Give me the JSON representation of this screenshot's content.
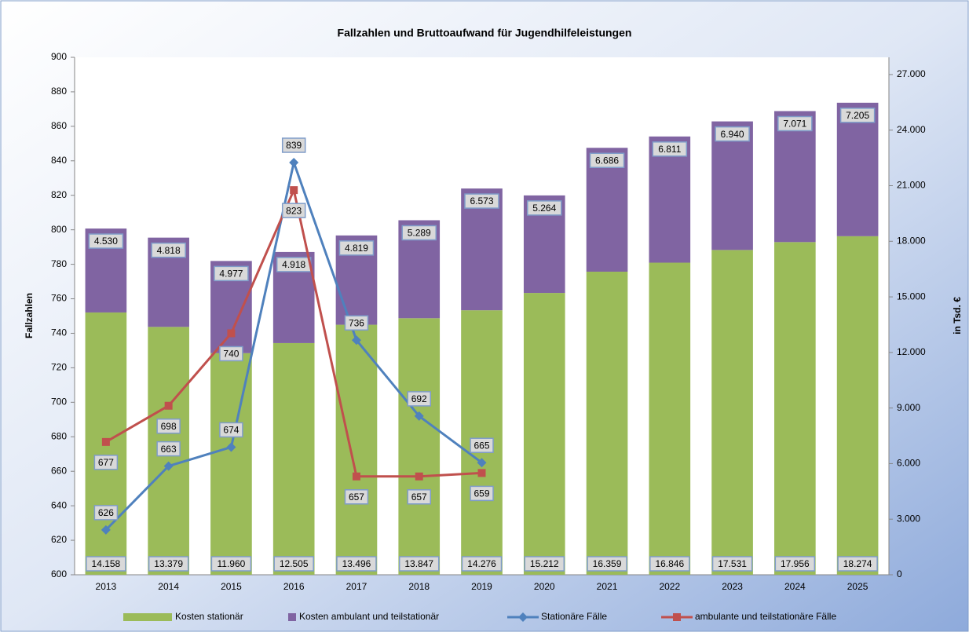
{
  "chart_data": {
    "type": "bar",
    "title": "Fallzahlen und Bruttoaufwand für Jugendhilfeleistungen",
    "y_label": "Fallzahlen",
    "y2_label": "in Tsd. €",
    "categories": [
      "2013",
      "2014",
      "2015",
      "2016",
      "2017",
      "2018",
      "2019",
      "2020",
      "2021",
      "2022",
      "2023",
      "2024",
      "2025"
    ],
    "ylim": [
      600,
      900
    ],
    "yticks": [
      600,
      620,
      640,
      660,
      680,
      700,
      720,
      740,
      760,
      780,
      800,
      820,
      840,
      860,
      880,
      900
    ],
    "y2lim": [
      0,
      27930
    ],
    "y2ticks": [
      0,
      {
        "value": 3000,
        "label": "3.000"
      },
      {
        "value": 6000,
        "label": "6.000"
      },
      {
        "value": 9000,
        "label": "9.000"
      },
      {
        "value": 12000,
        "label": "12.000"
      },
      {
        "value": 15000,
        "label": "15.000"
      },
      {
        "value": 18000,
        "label": "18.000"
      },
      {
        "value": 21000,
        "label": "21.000"
      },
      {
        "value": 24000,
        "label": "24.000"
      },
      {
        "value": 27000,
        "label": "27.000"
      }
    ],
    "grid": false,
    "legend": "bottom",
    "stacked": true,
    "series": [
      {
        "name": "Kosten stationär",
        "type": "bar",
        "axis": "y2",
        "color": "#9bbb59",
        "values": [
          14158,
          13379,
          11960,
          12505,
          13496,
          13847,
          14276,
          15212,
          16359,
          16846,
          17531,
          17956,
          18274
        ],
        "value_labels": [
          "14.158",
          "13.379",
          "11.960",
          "12.505",
          "13.496",
          "13.847",
          "14.276",
          "15.212",
          "16.359",
          "16.846",
          "17.531",
          "17.956",
          "18.274"
        ]
      },
      {
        "name": "Kosten ambulant und teilstationär",
        "type": "bar",
        "axis": "y2",
        "color": "#8064a2",
        "values": [
          4530,
          4818,
          4977,
          4918,
          4819,
          5289,
          6573,
          5264,
          6686,
          6811,
          6940,
          7071,
          7205
        ],
        "value_labels": [
          "4.530",
          "4.818",
          "4.977",
          "4.918",
          "4.819",
          "5.289",
          "6.573",
          "5.264",
          "6.686",
          "6.811",
          "6.940",
          "7.071",
          "7.205"
        ]
      },
      {
        "name": "Stationäre Fälle",
        "type": "line",
        "axis": "y",
        "color": "#4f81bd",
        "marker": "diamond",
        "values": [
          626,
          663,
          674,
          839,
          736,
          692,
          665,
          null,
          null,
          null,
          null,
          null,
          null
        ]
      },
      {
        "name": "ambulante und teilstationäre Fälle",
        "type": "line",
        "axis": "y",
        "color": "#c0504d",
        "marker": "square",
        "values": [
          677,
          698,
          740,
          823,
          657,
          657,
          659,
          null,
          null,
          null,
          null,
          null,
          null
        ]
      }
    ]
  }
}
